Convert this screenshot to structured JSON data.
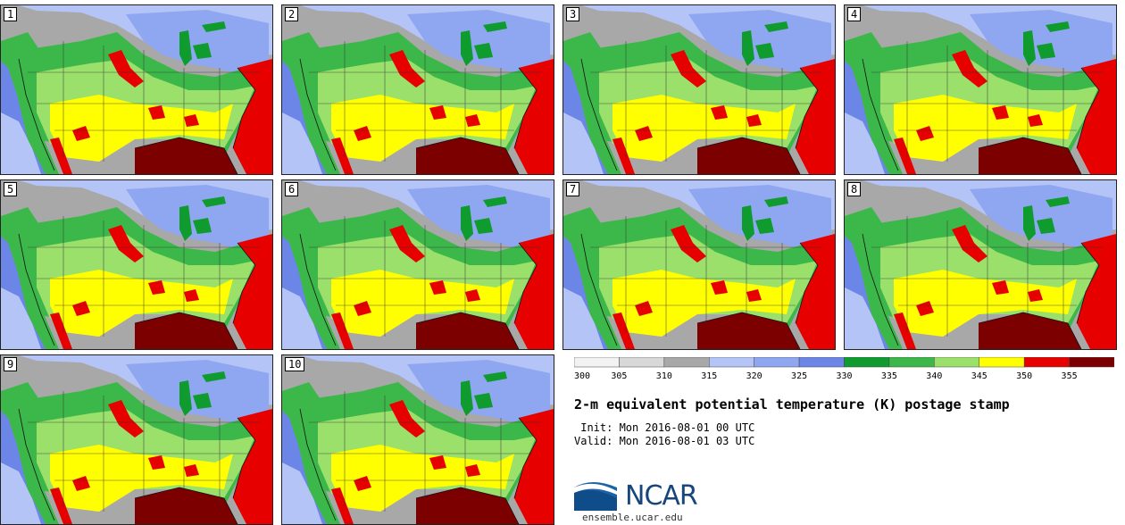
{
  "panels": [
    {
      "label": "1"
    },
    {
      "label": "2"
    },
    {
      "label": "3"
    },
    {
      "label": "4"
    },
    {
      "label": "5"
    },
    {
      "label": "6"
    },
    {
      "label": "7"
    },
    {
      "label": "8"
    },
    {
      "label": "9"
    },
    {
      "label": "10"
    }
  ],
  "colorbar": {
    "ticks": [
      "300",
      "305",
      "310",
      "315",
      "320",
      "325",
      "330",
      "335",
      "340",
      "345",
      "350",
      "355"
    ],
    "colors": [
      "#f2f2f2",
      "#d8d8d8",
      "#a8a8a8",
      "#b4c4f6",
      "#8fa6f1",
      "#6c86e8",
      "#0f9b2d",
      "#3cb84a",
      "#9ae06b",
      "#ffff00",
      "#e60000",
      "#7d0000"
    ]
  },
  "title": "2-m equivalent potential temperature (K) postage stamp",
  "init_line": " Init: Mon 2016-08-01 00 UTC",
  "valid_line": "Valid: Mon 2016-08-01 03 UTC",
  "logo": {
    "text": "NCAR",
    "site": "ensemble.ucar.edu"
  },
  "colors": {
    "ocean_gulf": "#7d0000",
    "atlantic": "#e60000",
    "land_green": "#9ae06b"
  }
}
